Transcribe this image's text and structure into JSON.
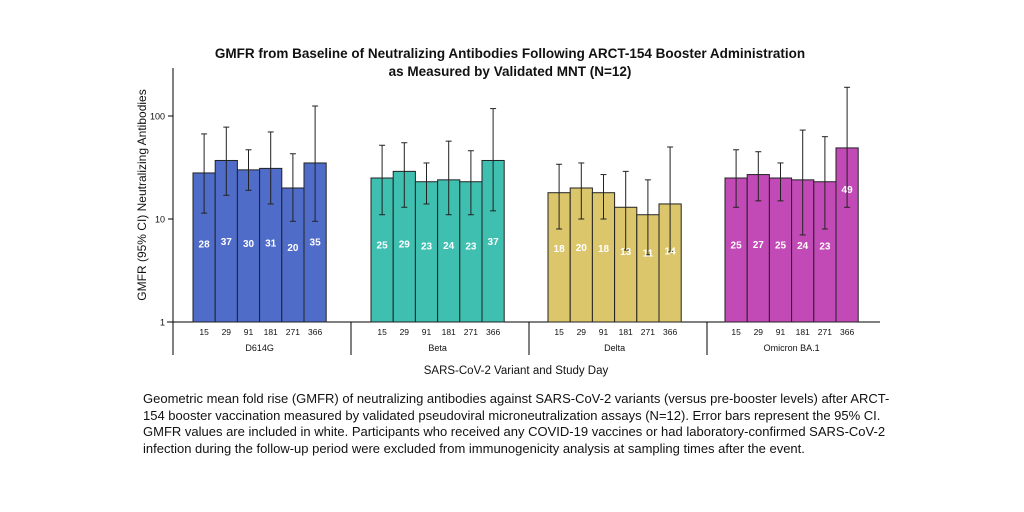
{
  "chart_data": {
    "type": "bar",
    "title_line1": "GMFR from Baseline of Neutralizing Antibodies Following ARCT-154 Booster Administration",
    "title_line2": "as Measured by Validated MNT (N=12)",
    "ylabel": "GMFR (95% CI) Neutralizing Antibodies",
    "xlabel": "SARS-CoV-2 Variant and Study Day",
    "yscale": "log",
    "ylim": [
      1,
      290
    ],
    "yticks": [
      "1",
      "10",
      "100"
    ],
    "days": [
      "15",
      "29",
      "91",
      "181",
      "271",
      "366"
    ],
    "groups": [
      {
        "name": "D614G",
        "color": "#4f6cc8",
        "values": [
          28,
          37,
          30,
          31,
          20,
          35
        ],
        "ci_low": [
          11.4,
          17,
          19,
          14,
          9.5,
          9.5
        ],
        "ci_high": [
          67,
          78,
          47,
          70,
          43,
          125
        ]
      },
      {
        "name": "Beta",
        "color": "#3fbfb0",
        "values": [
          25,
          29,
          23,
          24,
          23,
          37
        ],
        "ci_low": [
          11,
          13,
          14,
          11,
          11,
          12
        ],
        "ci_high": [
          52,
          55,
          35,
          57,
          46,
          118
        ]
      },
      {
        "name": "Delta",
        "color": "#dcc66c",
        "values": [
          18,
          20,
          18,
          13,
          11,
          14
        ],
        "ci_low": [
          8,
          10,
          10,
          5,
          4.5,
          4.8
        ],
        "ci_high": [
          34,
          35,
          27,
          29,
          24,
          50
        ]
      },
      {
        "name": "Omicron BA.1",
        "color": "#c24ab6",
        "values": [
          25,
          27,
          25,
          24,
          23,
          49
        ],
        "ci_low": [
          13,
          15,
          15,
          7,
          8,
          13
        ],
        "ci_high": [
          47,
          45,
          35,
          73,
          63,
          190
        ]
      }
    ]
  },
  "caption": "Geometric mean fold rise (GMFR) of neutralizing antibodies against SARS-CoV-2 variants (versus pre-booster levels) after ARCT-154 booster vaccination measured by validated pseudoviral microneutralization assays (N=12). Error bars represent the 95% CI. GMFR values are included in white. Participants who received any COVID-19 vaccines or had laboratory-confirmed SARS-CoV-2 infection during the follow-up period were excluded from immunogenicity analysis at sampling times after the event."
}
